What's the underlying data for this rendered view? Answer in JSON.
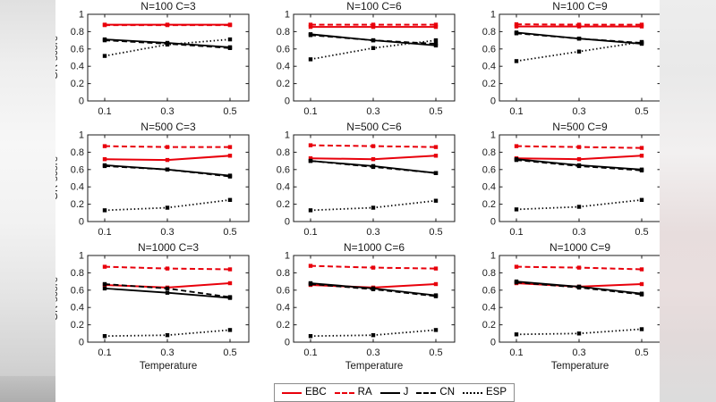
{
  "figure": {
    "ylabel": "GR-score",
    "xlabel": "Temperature",
    "x_tick_labels": [
      "0.1",
      "0.3",
      "0.5"
    ],
    "y_tick_labels": [
      "0",
      "0.2",
      "0.4",
      "0.6",
      "0.8",
      "1"
    ],
    "axis_color": "#1a1a1a",
    "red": "#e8000b",
    "black": "#000000"
  },
  "legend": {
    "entries": [
      {
        "label": "EBC",
        "color": "#e8000b",
        "style": "solid"
      },
      {
        "label": "RA",
        "color": "#e8000b",
        "style": "dashed"
      },
      {
        "label": "J",
        "color": "#000000",
        "style": "solid"
      },
      {
        "label": "CN",
        "color": "#000000",
        "style": "dashed"
      },
      {
        "label": "ESP",
        "color": "#000000",
        "style": "dotted"
      }
    ]
  },
  "chart_data": [
    {
      "type": "line",
      "title": "N=100 C=3",
      "x": [
        0.1,
        0.3,
        0.5
      ],
      "xlabel": "",
      "ylabel": "GR-score",
      "ylim": [
        0,
        1
      ],
      "series": [
        {
          "name": "EBC",
          "values": [
            0.88,
            0.88,
            0.88
          ]
        },
        {
          "name": "RA",
          "values": [
            0.875,
            0.875,
            0.875
          ]
        },
        {
          "name": "J",
          "values": [
            0.71,
            0.67,
            0.62
          ]
        },
        {
          "name": "CN",
          "values": [
            0.7,
            0.66,
            0.61
          ]
        },
        {
          "name": "ESP",
          "values": [
            0.52,
            0.65,
            0.71
          ]
        }
      ]
    },
    {
      "type": "line",
      "title": "N=100 C=6",
      "x": [
        0.1,
        0.3,
        0.5
      ],
      "xlabel": "",
      "ylabel": "GR-score",
      "ylim": [
        0,
        1
      ],
      "series": [
        {
          "name": "EBC",
          "values": [
            0.855,
            0.855,
            0.855
          ]
        },
        {
          "name": "RA",
          "values": [
            0.88,
            0.88,
            0.88
          ]
        },
        {
          "name": "J",
          "values": [
            0.77,
            0.7,
            0.64
          ]
        },
        {
          "name": "CN",
          "values": [
            0.76,
            0.7,
            0.66
          ]
        },
        {
          "name": "ESP",
          "values": [
            0.48,
            0.61,
            0.7
          ]
        }
      ]
    },
    {
      "type": "line",
      "title": "N=100 C=9",
      "x": [
        0.1,
        0.3,
        0.5
      ],
      "xlabel": "",
      "ylabel": "GR-score",
      "ylim": [
        0,
        1
      ],
      "series": [
        {
          "name": "EBC",
          "values": [
            0.86,
            0.86,
            0.86
          ]
        },
        {
          "name": "RA",
          "values": [
            0.885,
            0.88,
            0.88
          ]
        },
        {
          "name": "J",
          "values": [
            0.79,
            0.72,
            0.66
          ]
        },
        {
          "name": "CN",
          "values": [
            0.78,
            0.72,
            0.67
          ]
        },
        {
          "name": "ESP",
          "values": [
            0.46,
            0.57,
            0.68
          ]
        }
      ]
    },
    {
      "type": "line",
      "title": "N=500 C=3",
      "x": [
        0.1,
        0.3,
        0.5
      ],
      "xlabel": "",
      "ylabel": "GR-score",
      "ylim": [
        0,
        1
      ],
      "series": [
        {
          "name": "EBC",
          "values": [
            0.72,
            0.71,
            0.76
          ]
        },
        {
          "name": "RA",
          "values": [
            0.87,
            0.86,
            0.86
          ]
        },
        {
          "name": "J",
          "values": [
            0.65,
            0.6,
            0.53
          ]
        },
        {
          "name": "CN",
          "values": [
            0.64,
            0.6,
            0.52
          ]
        },
        {
          "name": "ESP",
          "values": [
            0.13,
            0.16,
            0.25
          ]
        }
      ]
    },
    {
      "type": "line",
      "title": "N=500 C=6",
      "x": [
        0.1,
        0.3,
        0.5
      ],
      "xlabel": "",
      "ylabel": "GR-score",
      "ylim": [
        0,
        1
      ],
      "series": [
        {
          "name": "EBC",
          "values": [
            0.73,
            0.72,
            0.76
          ]
        },
        {
          "name": "RA",
          "values": [
            0.88,
            0.87,
            0.86
          ]
        },
        {
          "name": "J",
          "values": [
            0.7,
            0.64,
            0.56
          ]
        },
        {
          "name": "CN",
          "values": [
            0.7,
            0.63,
            0.56
          ]
        },
        {
          "name": "ESP",
          "values": [
            0.13,
            0.16,
            0.24
          ]
        }
      ]
    },
    {
      "type": "line",
      "title": "N=500 C=9",
      "x": [
        0.1,
        0.3,
        0.5
      ],
      "xlabel": "",
      "ylabel": "GR-score",
      "ylim": [
        0,
        1
      ],
      "series": [
        {
          "name": "EBC",
          "values": [
            0.73,
            0.72,
            0.76
          ]
        },
        {
          "name": "RA",
          "values": [
            0.87,
            0.86,
            0.85
          ]
        },
        {
          "name": "J",
          "values": [
            0.72,
            0.65,
            0.6
          ]
        },
        {
          "name": "CN",
          "values": [
            0.71,
            0.64,
            0.59
          ]
        },
        {
          "name": "ESP",
          "values": [
            0.14,
            0.17,
            0.25
          ]
        }
      ]
    },
    {
      "type": "line",
      "title": "N=1000 C=3",
      "x": [
        0.1,
        0.3,
        0.5
      ],
      "xlabel": "Temperature",
      "ylabel": "GR-score",
      "ylim": [
        0,
        1
      ],
      "series": [
        {
          "name": "EBC",
          "values": [
            0.66,
            0.63,
            0.68
          ]
        },
        {
          "name": "RA",
          "values": [
            0.87,
            0.85,
            0.84
          ]
        },
        {
          "name": "J",
          "values": [
            0.62,
            0.57,
            0.51
          ]
        },
        {
          "name": "CN",
          "values": [
            0.67,
            0.62,
            0.52
          ]
        },
        {
          "name": "ESP",
          "values": [
            0.07,
            0.08,
            0.14
          ]
        }
      ]
    },
    {
      "type": "line",
      "title": "N=1000 C=6",
      "x": [
        0.1,
        0.3,
        0.5
      ],
      "xlabel": "Temperature",
      "ylabel": "GR-score",
      "ylim": [
        0,
        1
      ],
      "series": [
        {
          "name": "EBC",
          "values": [
            0.66,
            0.63,
            0.67
          ]
        },
        {
          "name": "RA",
          "values": [
            0.88,
            0.86,
            0.85
          ]
        },
        {
          "name": "J",
          "values": [
            0.68,
            0.62,
            0.54
          ]
        },
        {
          "name": "CN",
          "values": [
            0.67,
            0.61,
            0.53
          ]
        },
        {
          "name": "ESP",
          "values": [
            0.07,
            0.08,
            0.14
          ]
        }
      ]
    },
    {
      "type": "line",
      "title": "N=1000 C=9",
      "x": [
        0.1,
        0.3,
        0.5
      ],
      "xlabel": "Temperature",
      "ylabel": "GR-score",
      "ylim": [
        0,
        1
      ],
      "series": [
        {
          "name": "EBC",
          "values": [
            0.68,
            0.64,
            0.67
          ]
        },
        {
          "name": "RA",
          "values": [
            0.87,
            0.86,
            0.84
          ]
        },
        {
          "name": "J",
          "values": [
            0.7,
            0.64,
            0.56
          ]
        },
        {
          "name": "CN",
          "values": [
            0.69,
            0.63,
            0.55
          ]
        },
        {
          "name": "ESP",
          "values": [
            0.09,
            0.1,
            0.15
          ]
        }
      ]
    }
  ]
}
